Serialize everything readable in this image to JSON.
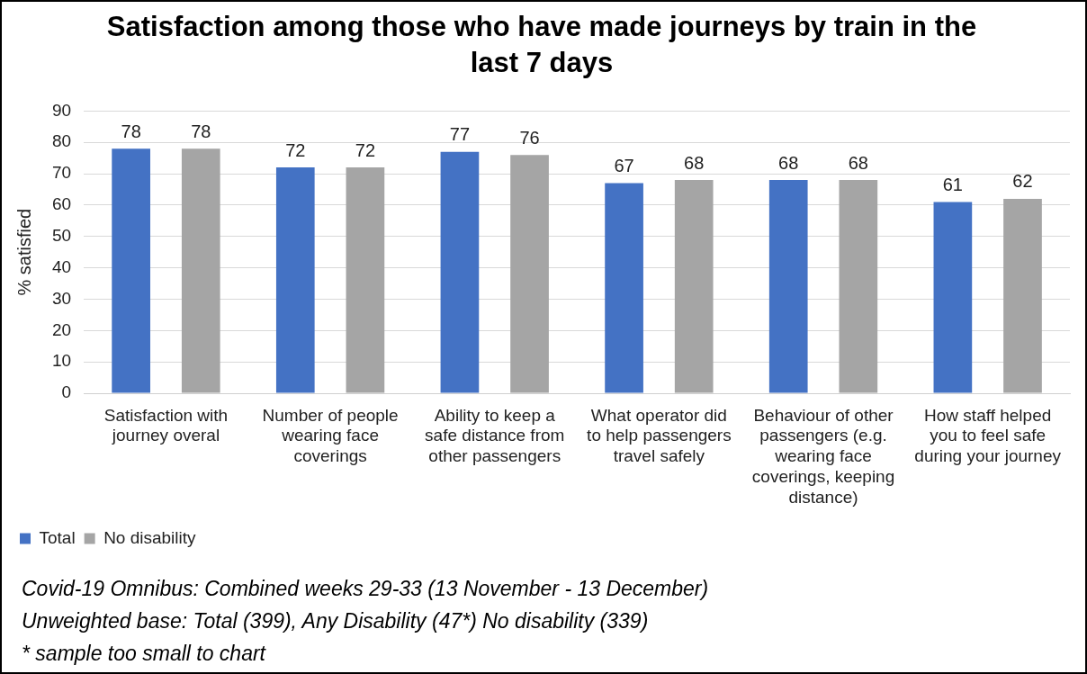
{
  "chart_data": {
    "type": "bar",
    "title": "Satisfaction among those who have made journeys by train in the last 7 days",
    "ylabel": "% satisfied",
    "categories": [
      "Satisfaction with journey overal",
      "Number of people wearing face coverings",
      "Ability to keep a safe distance from other passengers",
      "What operator did to help passengers travel safely",
      "Behaviour of other passengers (e.g. wearing face coverings, keeping distance)",
      "How staff helped you to feel safe during your journey"
    ],
    "series": [
      {
        "name": "Total",
        "color": "#4472c4",
        "values": [
          78,
          72,
          77,
          67,
          68,
          61
        ]
      },
      {
        "name": "No disability",
        "color": "#a5a5a5",
        "values": [
          78,
          72,
          76,
          68,
          68,
          62
        ]
      }
    ],
    "ylim": [
      0,
      90
    ],
    "yticks": [
      0,
      10,
      20,
      30,
      40,
      50,
      60,
      70,
      80,
      90
    ],
    "grid": "y",
    "legend": "bottom left",
    "data_labels": true,
    "annotations": [
      "Covid-19 Omnibus: Combined weeks 29-33 (13 November - 13 December)",
      "Unweighted base: Total (399), Any Disability (47*) No disability (339)",
      "* sample too small to chart"
    ]
  }
}
